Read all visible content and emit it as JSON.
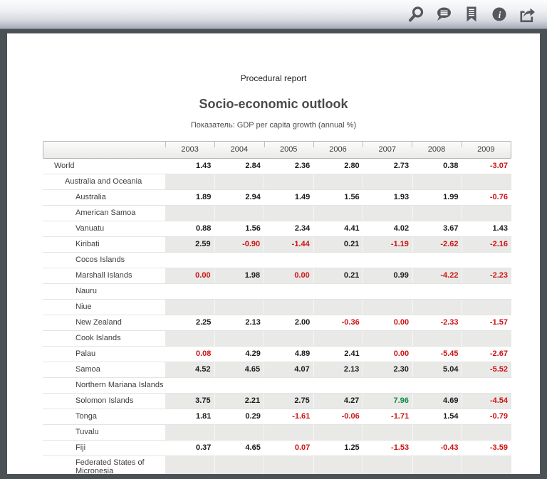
{
  "toolbar": {
    "icons": [
      {
        "name": "search-icon"
      },
      {
        "name": "comment-icon"
      },
      {
        "name": "bookmark-icon"
      },
      {
        "name": "info-icon"
      },
      {
        "name": "share-icon"
      }
    ]
  },
  "document": {
    "kicker": "Procedural report",
    "title": "Socio-economic outlook",
    "subtitle": "Показатель: GDP per capita growth (annual %)"
  },
  "colors": {
    "negative_value": "#cc1414",
    "high_value": "#0f8c4b",
    "shaded_row": "#e9e9e7"
  },
  "chart_data": {
    "type": "table",
    "title": "Socio-economic outlook",
    "subtitle": "Показатель: GDP per capita growth (annual %)",
    "columns": [
      "2003",
      "2004",
      "2005",
      "2006",
      "2007",
      "2008",
      "2009"
    ],
    "rows": [
      {
        "label": "World",
        "indent": 1,
        "cells": [
          {
            "v": "1.43"
          },
          {
            "v": "2.84"
          },
          {
            "v": "2.36"
          },
          {
            "v": "2.80"
          },
          {
            "v": "2.73"
          },
          {
            "v": "0.38"
          },
          {
            "v": "-3.07",
            "c": "r"
          }
        ]
      },
      {
        "label": "Australia and Oceania",
        "indent": 2,
        "cells": []
      },
      {
        "label": "Australia",
        "indent": 3,
        "cells": [
          {
            "v": "1.89"
          },
          {
            "v": "2.94"
          },
          {
            "v": "1.49"
          },
          {
            "v": "1.56"
          },
          {
            "v": "1.93"
          },
          {
            "v": "1.99"
          },
          {
            "v": "-0.76",
            "c": "r"
          }
        ]
      },
      {
        "label": "American Samoa",
        "indent": 3,
        "cells": []
      },
      {
        "label": "Vanuatu",
        "indent": 3,
        "cells": [
          {
            "v": "0.88"
          },
          {
            "v": "1.56"
          },
          {
            "v": "2.34"
          },
          {
            "v": "4.41"
          },
          {
            "v": "4.02"
          },
          {
            "v": "3.67"
          },
          {
            "v": "1.43"
          }
        ]
      },
      {
        "label": "Kiribati",
        "indent": 3,
        "cells": [
          {
            "v": "2.59"
          },
          {
            "v": "-0.90",
            "c": "r"
          },
          {
            "v": "-1.44",
            "c": "r"
          },
          {
            "v": "0.21"
          },
          {
            "v": "-1.19",
            "c": "r"
          },
          {
            "v": "-2.62",
            "c": "r"
          },
          {
            "v": "-2.16",
            "c": "r"
          }
        ]
      },
      {
        "label": "Cocos Islands",
        "indent": 3,
        "cells": []
      },
      {
        "label": "Marshall Islands",
        "indent": 3,
        "cells": [
          {
            "v": "0.00",
            "c": "r"
          },
          {
            "v": "1.98"
          },
          {
            "v": "0.00",
            "c": "r"
          },
          {
            "v": "0.21"
          },
          {
            "v": "0.99"
          },
          {
            "v": "-4.22",
            "c": "r"
          },
          {
            "v": "-2.23",
            "c": "r"
          }
        ]
      },
      {
        "label": "Nauru",
        "indent": 3,
        "cells": []
      },
      {
        "label": "Niue",
        "indent": 3,
        "cells": []
      },
      {
        "label": "New Zealand",
        "indent": 3,
        "cells": [
          {
            "v": "2.25"
          },
          {
            "v": "2.13"
          },
          {
            "v": "2.00"
          },
          {
            "v": "-0.36",
            "c": "r"
          },
          {
            "v": "0.00",
            "c": "r"
          },
          {
            "v": "-2.33",
            "c": "r"
          },
          {
            "v": "-1.57",
            "c": "r"
          }
        ]
      },
      {
        "label": "Cook Islands",
        "indent": 3,
        "cells": []
      },
      {
        "label": "Palau",
        "indent": 3,
        "cells": [
          {
            "v": "0.08",
            "c": "r"
          },
          {
            "v": "4.29"
          },
          {
            "v": "4.89"
          },
          {
            "v": "2.41"
          },
          {
            "v": "0.00",
            "c": "r"
          },
          {
            "v": "-5.45",
            "c": "r"
          },
          {
            "v": "-2.67",
            "c": "r"
          }
        ]
      },
      {
        "label": "Samoa",
        "indent": 3,
        "cells": [
          {
            "v": "4.52"
          },
          {
            "v": "4.65"
          },
          {
            "v": "4.07"
          },
          {
            "v": "2.13"
          },
          {
            "v": "2.30"
          },
          {
            "v": "5.04"
          },
          {
            "v": "-5.52",
            "c": "r"
          }
        ]
      },
      {
        "label": "Northern Mariana Islands",
        "indent": 3,
        "cells": []
      },
      {
        "label": "Solomon Islands",
        "indent": 3,
        "cells": [
          {
            "v": "3.75"
          },
          {
            "v": "2.21"
          },
          {
            "v": "2.75"
          },
          {
            "v": "4.27"
          },
          {
            "v": "7.96",
            "c": "g"
          },
          {
            "v": "4.69"
          },
          {
            "v": "-4.54",
            "c": "r"
          }
        ]
      },
      {
        "label": "Tonga",
        "indent": 3,
        "cells": [
          {
            "v": "1.81"
          },
          {
            "v": "0.29"
          },
          {
            "v": "-1.61",
            "c": "r"
          },
          {
            "v": "-0.06",
            "c": "r"
          },
          {
            "v": "-1.71",
            "c": "r"
          },
          {
            "v": "1.54"
          },
          {
            "v": "-0.79",
            "c": "r"
          }
        ]
      },
      {
        "label": "Tuvalu",
        "indent": 3,
        "cells": []
      },
      {
        "label": "Fiji",
        "indent": 3,
        "cells": [
          {
            "v": "0.37"
          },
          {
            "v": "4.65"
          },
          {
            "v": "0.07",
            "c": "r"
          },
          {
            "v": "1.25"
          },
          {
            "v": "-1.53",
            "c": "r"
          },
          {
            "v": "-0.43",
            "c": "r"
          },
          {
            "v": "-3.59",
            "c": "r"
          }
        ]
      },
      {
        "label": "Federated States of Micronesia",
        "indent": 3,
        "cells": []
      }
    ]
  }
}
